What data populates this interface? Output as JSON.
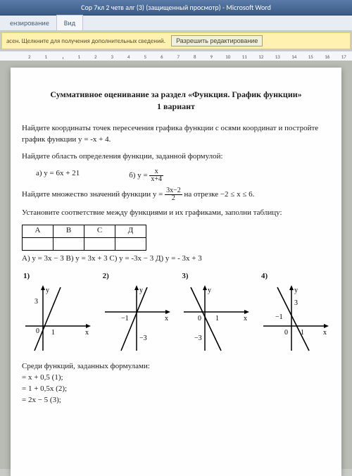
{
  "window": {
    "title": "Сор 7кл 2 четв алг (3) (защищенный просмотр) - Microsoft Word"
  },
  "ribbon": {
    "tab1": "ензирование",
    "tab2": "Вид"
  },
  "warning": {
    "text": "асен. Щелкните для получения дополнительных сведений.",
    "button": "Разрешить редактирование"
  },
  "ruler": {
    "marks": [
      "2",
      "1",
      "",
      "1",
      "2",
      "3",
      "4",
      "5",
      "6",
      "7",
      "8",
      "9",
      "10",
      "11",
      "12",
      "13",
      "14",
      "15",
      "16",
      "17"
    ]
  },
  "doc": {
    "title": "Суммативное оценивание за раздел «Функция. График функции»",
    "subtitle": "1 вариант",
    "task1": "Найдите координаты точек пересечения графика функции с осями координат и постройте график функции y = -x + 4.",
    "task2": "Найдите область определения функции, заданной формулой:",
    "t2a": "а) y = 6x + 21",
    "t2b_label": "б) y = ",
    "t2b_num": "x",
    "t2b_den": "x+4",
    "task3_a": "Найдите множество значений функции y = ",
    "t3_num": "3x−2",
    "t3_den": "2",
    "task3_b": " на отрезке −2 ≤ x ≤ 6.",
    "task4": "Установите соответствие между функциями и их графиками, заполни таблицу:",
    "thA": "А",
    "thB": "В",
    "thC": "С",
    "thD": "Д",
    "options": "А) y = 3x − 3   В) y = 3x + 3   С) y = -3x − 3   Д) y = - 3x + 3",
    "g1": "1)",
    "g2": "2)",
    "g3": "3)",
    "g4": "4)",
    "axis_y": "y",
    "axis_x": "x",
    "lbl_0": "0",
    "lbl_1": "1",
    "lbl_3": "3",
    "lbl_m1": "−1",
    "lbl_m3": "−3",
    "task5": "Среди функций, заданных формулами:",
    "f1": "= x + 0,5 (1);",
    "f2": "= 1 + 0,5x (2);",
    "f3": "= 2x − 5 (3);"
  },
  "style": {
    "titlebar_bg": "#3b5c85",
    "warning_bg": "#fff2b0",
    "page_bg": "#fefefe",
    "doc_area_bg": "#b8bcb4",
    "axis_color": "#000000"
  }
}
